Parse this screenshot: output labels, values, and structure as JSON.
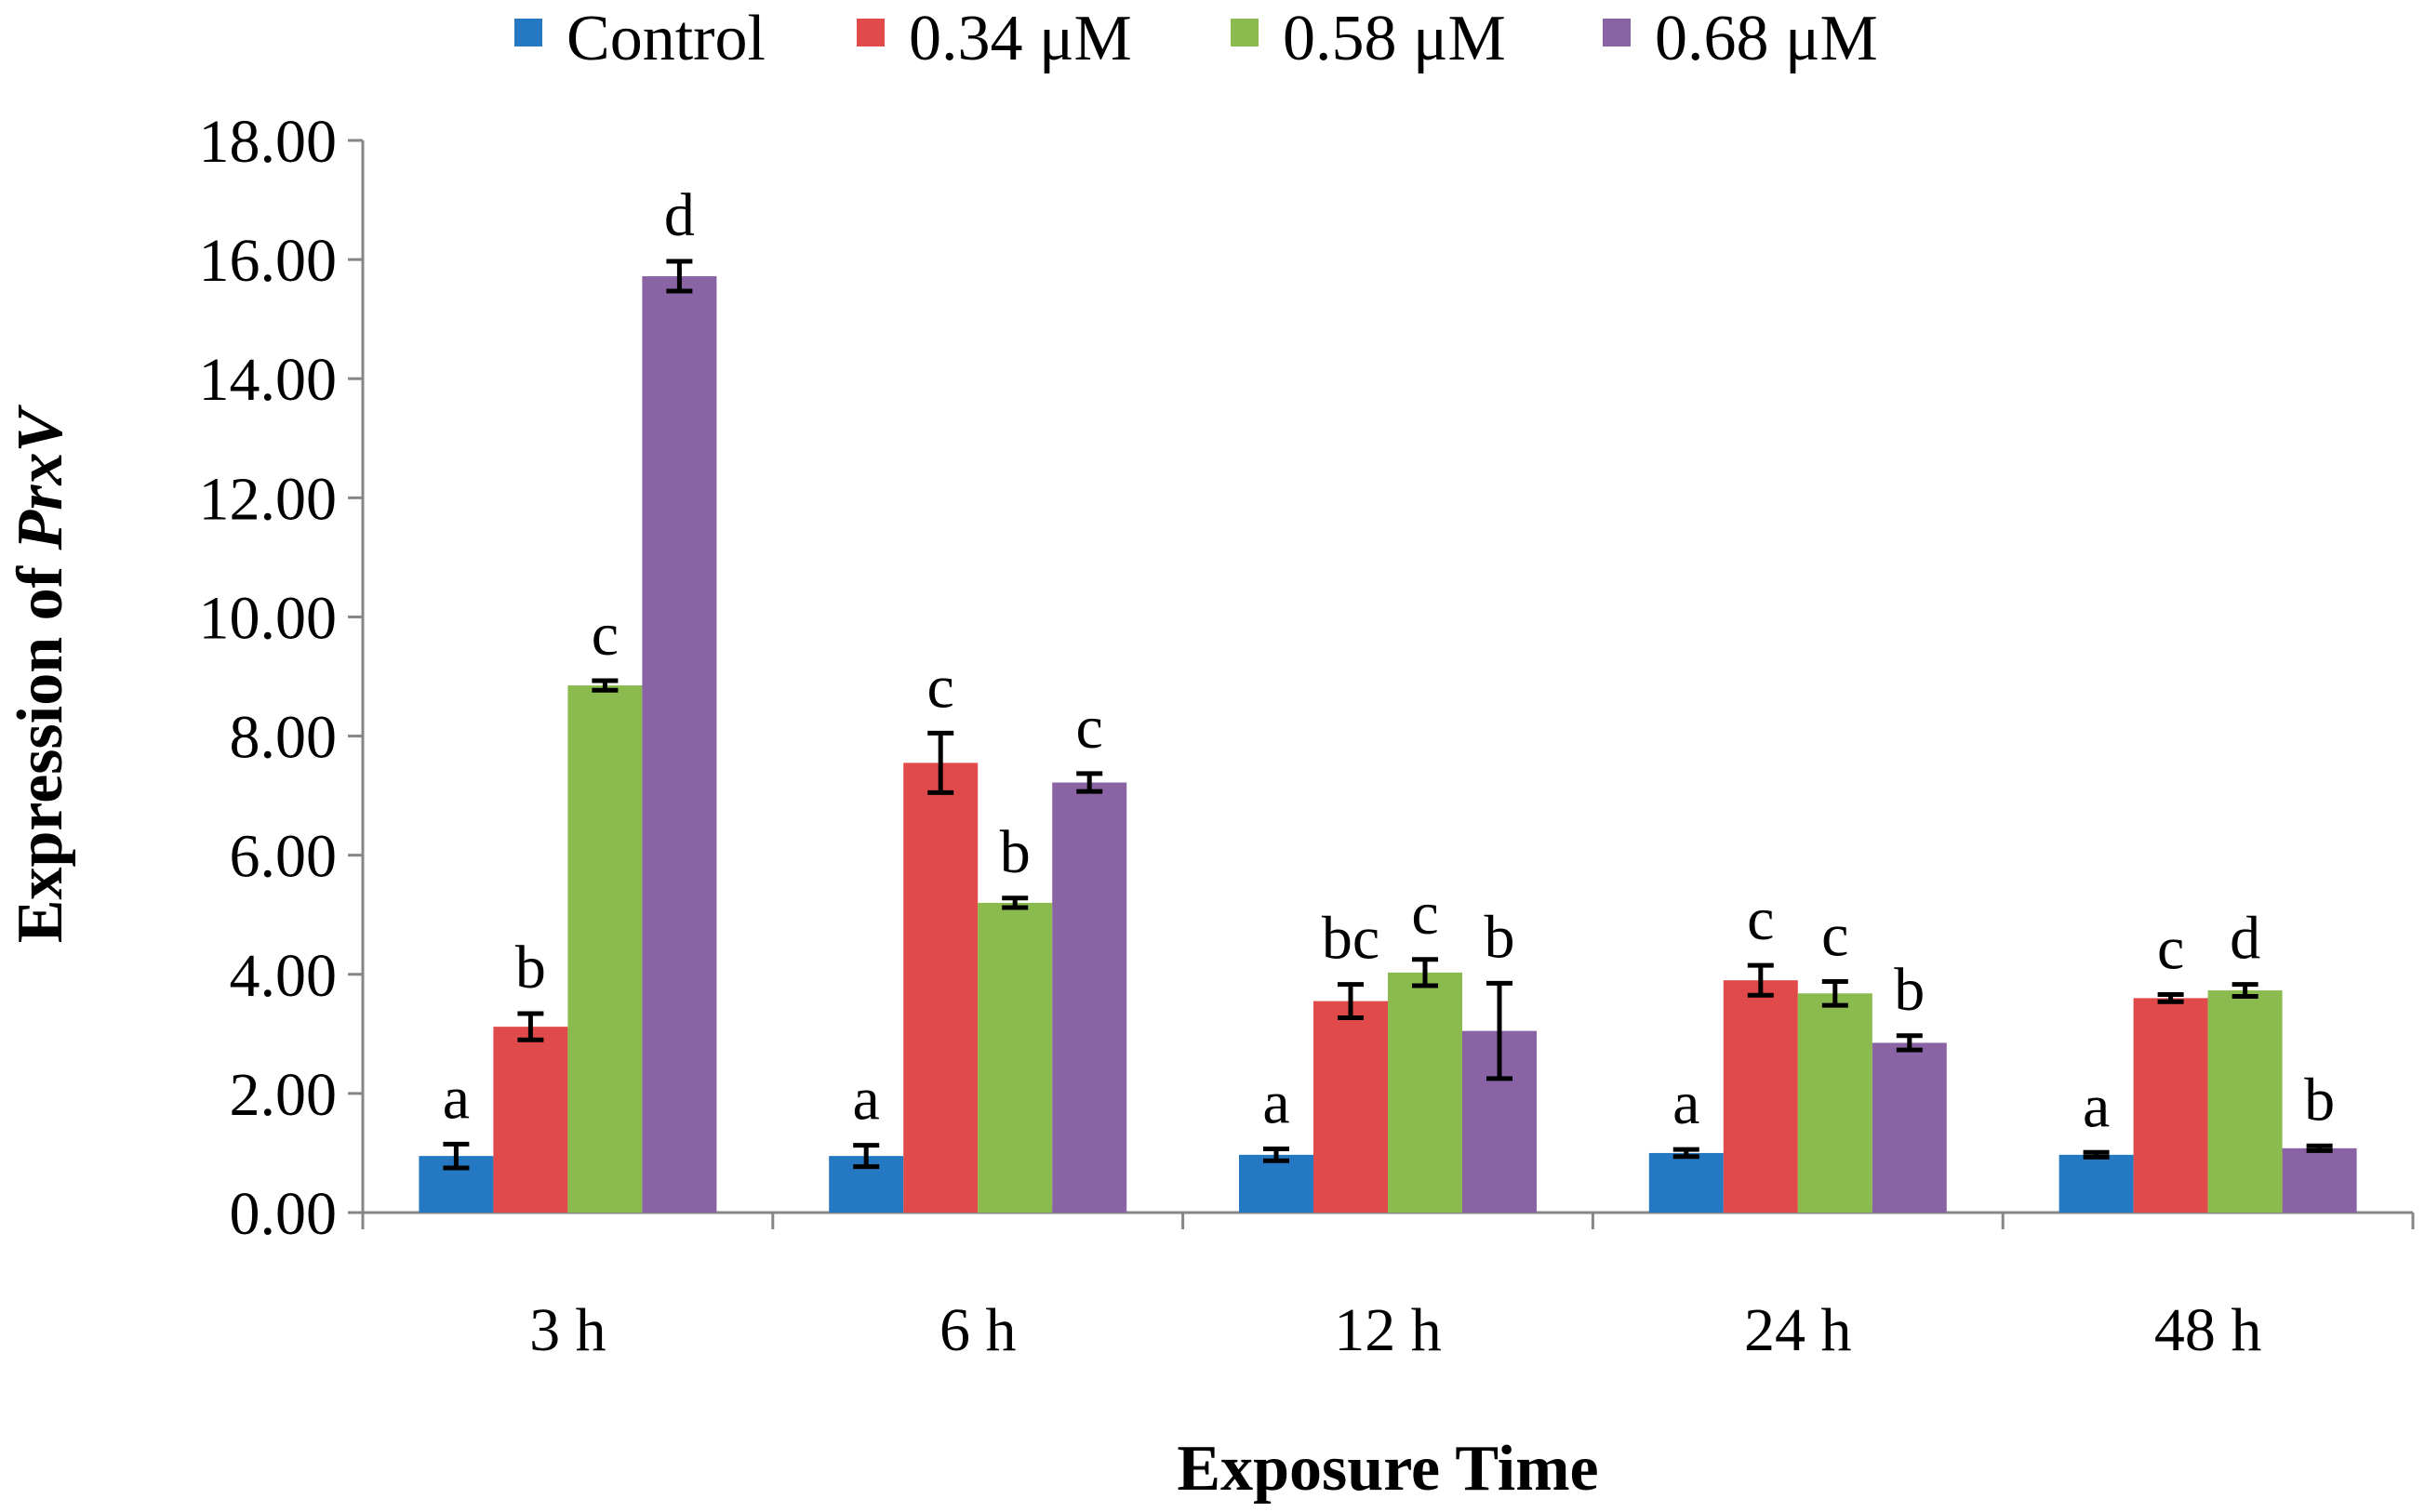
{
  "chart_data": {
    "type": "bar",
    "title": "",
    "xlabel": "Exposure Time",
    "ylabel_prefix": "Expression of ",
    "ylabel_gene": "PrxV",
    "categories": [
      "3 h",
      "6 h",
      "12 h",
      "24 h",
      "48 h"
    ],
    "ylim": [
      0,
      18
    ],
    "yticks": [
      "0.00",
      "2.00",
      "4.00",
      "6.00",
      "8.00",
      "10.00",
      "12.00",
      "14.00",
      "16.00",
      "18.00"
    ],
    "ytick_values": [
      0,
      2,
      4,
      6,
      8,
      10,
      12,
      14,
      16,
      18
    ],
    "grid": false,
    "legend_position": "top",
    "series": [
      {
        "name": "Control",
        "color": "#2479C2",
        "values": [
          0.95,
          0.95,
          0.97,
          1.0,
          0.97
        ],
        "errors": [
          0.2,
          0.18,
          0.1,
          0.06,
          0.04
        ],
        "letters": [
          "a",
          "a",
          "a",
          "a",
          "a"
        ]
      },
      {
        "name": "0.34 μM",
        "color": "#E04A4A",
        "values": [
          3.12,
          7.55,
          3.55,
          3.9,
          3.6
        ],
        "errors": [
          0.22,
          0.5,
          0.28,
          0.25,
          0.06
        ],
        "letters": [
          "b",
          "c",
          "bc",
          "c",
          "c"
        ]
      },
      {
        "name": "0.58 μM",
        "color": "#8BBB4E",
        "values": [
          8.85,
          5.2,
          4.03,
          3.68,
          3.73
        ],
        "errors": [
          0.08,
          0.08,
          0.22,
          0.2,
          0.1
        ],
        "letters": [
          "c",
          "b",
          "c",
          "c",
          "d"
        ]
      },
      {
        "name": "0.68 μM",
        "color": "#8A63A5",
        "values": [
          15.72,
          7.22,
          3.05,
          2.85,
          1.08
        ],
        "errors": [
          0.25,
          0.15,
          0.8,
          0.12,
          0.04
        ],
        "letters": [
          "d",
          "c",
          "b",
          "b",
          "b"
        ]
      }
    ]
  }
}
